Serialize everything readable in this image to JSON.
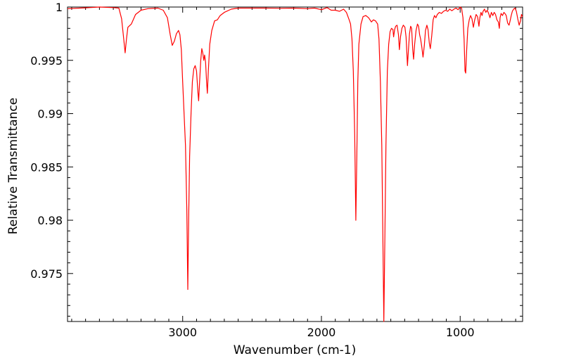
{
  "chart_data": {
    "type": "line",
    "title": "",
    "xlabel": "Wavenumber (cm-1)",
    "ylabel": "Relative Transmittance",
    "xlim": [
      3830,
      550
    ],
    "ylim": [
      0.9705,
      1.0
    ],
    "x_reversed": true,
    "grid": false,
    "legend": "none",
    "x_ticks": [
      {
        "value": 3000,
        "label": "3000"
      },
      {
        "value": 2000,
        "label": "2000"
      },
      {
        "value": 1000,
        "label": "1000"
      }
    ],
    "y_ticks": [
      {
        "value": 1.0,
        "label": "1"
      },
      {
        "value": 0.995,
        "label": "0.995"
      },
      {
        "value": 0.99,
        "label": "0.99"
      },
      {
        "value": 0.985,
        "label": "0.985"
      },
      {
        "value": 0.98,
        "label": "0.98"
      },
      {
        "value": 0.975,
        "label": "0.975"
      }
    ],
    "series": [
      {
        "color": "#ff0000",
        "points": [
          [
            3830,
            0.99985
          ],
          [
            3700,
            0.99993
          ],
          [
            3600,
            1.0
          ],
          [
            3500,
            0.99995
          ],
          [
            3460,
            0.9999
          ],
          [
            3440,
            0.9989
          ],
          [
            3425,
            0.997
          ],
          [
            3415,
            0.9957
          ],
          [
            3405,
            0.997
          ],
          [
            3395,
            0.9981
          ],
          [
            3370,
            0.9984
          ],
          [
            3340,
            0.9993
          ],
          [
            3300,
            0.9997
          ],
          [
            3250,
            0.99985
          ],
          [
            3180,
            0.9999
          ],
          [
            3140,
            0.9997
          ],
          [
            3110,
            0.999
          ],
          [
            3090,
            0.9974
          ],
          [
            3075,
            0.9964
          ],
          [
            3060,
            0.9968
          ],
          [
            3045,
            0.9975
          ],
          [
            3030,
            0.9978
          ],
          [
            3020,
            0.9974
          ],
          [
            3010,
            0.996
          ],
          [
            3000,
            0.993
          ],
          [
            2990,
            0.99
          ],
          [
            2980,
            0.987
          ],
          [
            2970,
            0.981
          ],
          [
            2963,
            0.9735
          ],
          [
            2957,
            0.98
          ],
          [
            2950,
            0.986
          ],
          [
            2940,
            0.99
          ],
          [
            2930,
            0.993
          ],
          [
            2920,
            0.9942
          ],
          [
            2910,
            0.9945
          ],
          [
            2900,
            0.994
          ],
          [
            2890,
            0.992
          ],
          [
            2885,
            0.9912
          ],
          [
            2878,
            0.993
          ],
          [
            2870,
            0.995
          ],
          [
            2862,
            0.9961
          ],
          [
            2855,
            0.9957
          ],
          [
            2848,
            0.995
          ],
          [
            2842,
            0.9955
          ],
          [
            2835,
            0.9948
          ],
          [
            2828,
            0.993
          ],
          [
            2822,
            0.9919
          ],
          [
            2815,
            0.994
          ],
          [
            2805,
            0.9965
          ],
          [
            2790,
            0.9978
          ],
          [
            2770,
            0.9987
          ],
          [
            2750,
            0.9988
          ],
          [
            2730,
            0.9992
          ],
          [
            2700,
            0.9995
          ],
          [
            2650,
            0.9998
          ],
          [
            2600,
            0.9999
          ],
          [
            2500,
            0.9999
          ],
          [
            2400,
            0.9999
          ],
          [
            2300,
            0.99988
          ],
          [
            2200,
            0.9999
          ],
          [
            2100,
            0.99985
          ],
          [
            2050,
            0.9999
          ],
          [
            2000,
            0.99975
          ],
          [
            1960,
            0.99995
          ],
          [
            1930,
            0.9997
          ],
          [
            1900,
            0.9997
          ],
          [
            1870,
            0.9996
          ],
          [
            1840,
            0.9998
          ],
          [
            1820,
            0.9995
          ],
          [
            1800,
            0.9988
          ],
          [
            1790,
            0.9984
          ],
          [
            1780,
            0.997
          ],
          [
            1770,
            0.994
          ],
          [
            1760,
            0.988
          ],
          [
            1752,
            0.98
          ],
          [
            1745,
            0.986
          ],
          [
            1738,
            0.993
          ],
          [
            1730,
            0.9965
          ],
          [
            1715,
            0.9984
          ],
          [
            1700,
            0.9991
          ],
          [
            1680,
            0.9992
          ],
          [
            1660,
            0.999
          ],
          [
            1640,
            0.9986
          ],
          [
            1625,
            0.9988
          ],
          [
            1610,
            0.9987
          ],
          [
            1595,
            0.9984
          ],
          [
            1585,
            0.997
          ],
          [
            1575,
            0.993
          ],
          [
            1565,
            0.987
          ],
          [
            1557,
            0.978
          ],
          [
            1550,
            0.9705
          ],
          [
            1543,
            0.978
          ],
          [
            1535,
            0.987
          ],
          [
            1525,
            0.994
          ],
          [
            1515,
            0.9965
          ],
          [
            1505,
            0.9977
          ],
          [
            1495,
            0.998
          ],
          [
            1485,
            0.9979
          ],
          [
            1480,
            0.9972
          ],
          [
            1472,
            0.9979
          ],
          [
            1465,
            0.9982
          ],
          [
            1455,
            0.9983
          ],
          [
            1445,
            0.9974
          ],
          [
            1438,
            0.996
          ],
          [
            1430,
            0.9972
          ],
          [
            1420,
            0.998
          ],
          [
            1410,
            0.9983
          ],
          [
            1398,
            0.9981
          ],
          [
            1390,
            0.9972
          ],
          [
            1380,
            0.9945
          ],
          [
            1373,
            0.996
          ],
          [
            1365,
            0.9975
          ],
          [
            1357,
            0.9982
          ],
          [
            1350,
            0.998
          ],
          [
            1342,
            0.996
          ],
          [
            1336,
            0.9951
          ],
          [
            1328,
            0.9965
          ],
          [
            1318,
            0.9978
          ],
          [
            1308,
            0.9984
          ],
          [
            1300,
            0.9982
          ],
          [
            1292,
            0.9974
          ],
          [
            1285,
            0.997
          ],
          [
            1276,
            0.9962
          ],
          [
            1268,
            0.9953
          ],
          [
            1258,
            0.9964
          ],
          [
            1250,
            0.9978
          ],
          [
            1240,
            0.9983
          ],
          [
            1232,
            0.9979
          ],
          [
            1222,
            0.9966
          ],
          [
            1215,
            0.9961
          ],
          [
            1205,
            0.9973
          ],
          [
            1195,
            0.9988
          ],
          [
            1185,
            0.9992
          ],
          [
            1175,
            0.999
          ],
          [
            1165,
            0.9993
          ],
          [
            1150,
            0.9995
          ],
          [
            1135,
            0.9994
          ],
          [
            1120,
            0.9996
          ],
          [
            1105,
            0.9997
          ],
          [
            1090,
            0.9996
          ],
          [
            1075,
            0.9998
          ],
          [
            1060,
            0.99965
          ],
          [
            1045,
            0.9998
          ],
          [
            1030,
            0.9999
          ],
          [
            1015,
            0.99975
          ],
          [
            1000,
            1.0
          ],
          [
            990,
            0.9999
          ],
          [
            980,
            0.999
          ],
          [
            972,
            0.997
          ],
          [
            965,
            0.994
          ],
          [
            960,
            0.9938
          ],
          [
            953,
            0.996
          ],
          [
            945,
            0.998
          ],
          [
            935,
            0.9988
          ],
          [
            925,
            0.9992
          ],
          [
            915,
            0.9989
          ],
          [
            905,
            0.9981
          ],
          [
            895,
            0.9988
          ],
          [
            885,
            0.9993
          ],
          [
            875,
            0.9991
          ],
          [
            865,
            0.9982
          ],
          [
            858,
            0.999
          ],
          [
            850,
            0.9995
          ],
          [
            842,
            0.9992
          ],
          [
            835,
            0.9996
          ],
          [
            825,
            0.9998
          ],
          [
            815,
            0.9995
          ],
          [
            805,
            0.9997
          ],
          [
            795,
            0.9994
          ],
          [
            785,
            0.999
          ],
          [
            775,
            0.9995
          ],
          [
            765,
            0.9992
          ],
          [
            755,
            0.9995
          ],
          [
            745,
            0.9993
          ],
          [
            735,
            0.9988
          ],
          [
            725,
            0.9986
          ],
          [
            718,
            0.998
          ],
          [
            712,
            0.999
          ],
          [
            705,
            0.9994
          ],
          [
            695,
            0.9992
          ],
          [
            685,
            0.9995
          ],
          [
            678,
            0.9994
          ],
          [
            668,
            0.9992
          ],
          [
            658,
            0.9985
          ],
          [
            648,
            0.9983
          ],
          [
            640,
            0.9987
          ],
          [
            632,
            0.9992
          ],
          [
            624,
            0.9996
          ],
          [
            615,
            0.9998
          ],
          [
            605,
            0.9999
          ],
          [
            595,
            0.9996
          ],
          [
            585,
            0.9989
          ],
          [
            575,
            0.9983
          ],
          [
            565,
            0.9987
          ],
          [
            558,
            0.9993
          ],
          [
            550,
            0.9991
          ]
        ]
      }
    ]
  }
}
